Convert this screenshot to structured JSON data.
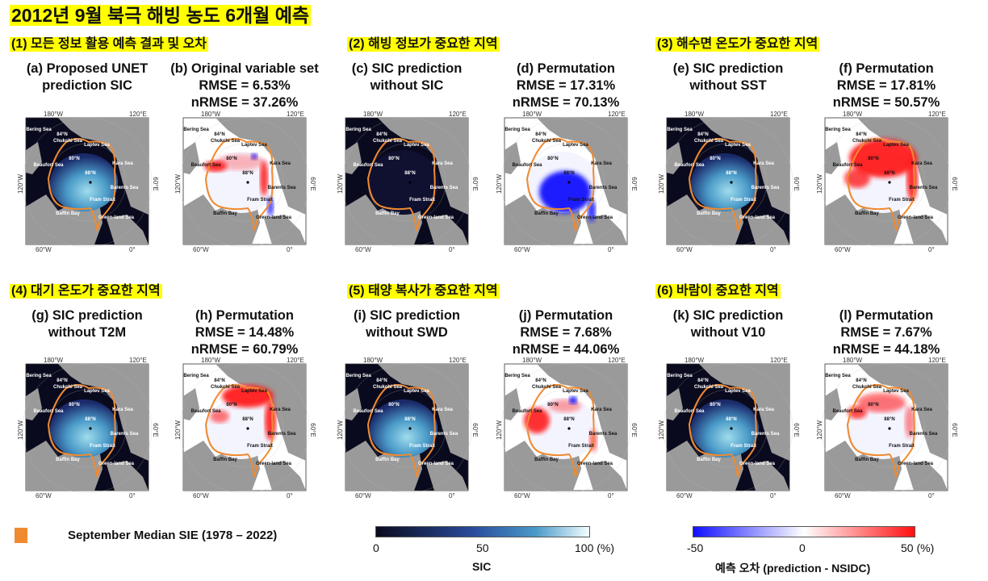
{
  "title": "2012년 9월 북극 해빙 농도 6개월 예측",
  "sections": [
    {
      "label": "(1) 모든 정보 활용 예측 결과 및 오차"
    },
    {
      "label": "(2) 해빙 정보가 중요한 지역"
    },
    {
      "label": "(3) 해수면 온도가 중요한 지역"
    },
    {
      "label": "(4) 대기 온도가 중요한 지역"
    },
    {
      "label": "(5) 태양 복사가 중요한 지역"
    },
    {
      "label": "(6) 바람이 중요한 지역"
    }
  ],
  "panels": [
    {
      "id": "a",
      "type": "sic",
      "lines": [
        "(a) Proposed UNET",
        "prediction SIC"
      ]
    },
    {
      "id": "b",
      "type": "error",
      "lines": [
        "(b) Original variable set",
        "RMSE = 6.53%",
        "nRMSE = 37.26%"
      ]
    },
    {
      "id": "c",
      "type": "sic",
      "lines": [
        "(c) SIC prediction",
        "without SIC"
      ]
    },
    {
      "id": "d",
      "type": "error",
      "lines": [
        "(d) Permutation",
        "RMSE = 17.31%",
        "nRMSE = 70.13%"
      ]
    },
    {
      "id": "e",
      "type": "sic",
      "lines": [
        "(e) SIC prediction",
        "without SST"
      ]
    },
    {
      "id": "f",
      "type": "error",
      "lines": [
        "(f) Permutation",
        "RMSE = 17.81%",
        "nRMSE = 50.57%"
      ]
    },
    {
      "id": "g",
      "type": "sic",
      "lines": [
        "(g) SIC prediction",
        "without T2M"
      ]
    },
    {
      "id": "h",
      "type": "error",
      "lines": [
        "(h) Permutation",
        "RMSE = 14.48%",
        "nRMSE = 60.79%"
      ]
    },
    {
      "id": "i",
      "type": "sic",
      "lines": [
        "(i) SIC prediction",
        "without SWD"
      ]
    },
    {
      "id": "j",
      "type": "error",
      "lines": [
        "(j) Permutation",
        "RMSE = 7.68%",
        "nRMSE = 44.06%"
      ]
    },
    {
      "id": "k",
      "type": "sic",
      "lines": [
        "(k) SIC prediction",
        "without V10"
      ]
    },
    {
      "id": "l",
      "type": "error",
      "lines": [
        "(l) Permutation",
        "RMSE = 7.67%",
        "nRMSE = 44.18%"
      ]
    }
  ],
  "map_labels": {
    "seas": [
      "Bering Sea",
      "Chukchi Sea",
      "Laptev Sea",
      "Beaufort Sea",
      "Kara Sea",
      "Barents Sea",
      "Fram Strait",
      "Baffin Bay",
      "Green-land Sea"
    ],
    "lon": [
      "180°W",
      "120°E",
      "120°W",
      "60°E",
      "60°W",
      "0°"
    ],
    "lat": [
      "84°N",
      "80°N",
      "88°N"
    ]
  },
  "legend": {
    "label": "September Median SIE (1978 – 2022)",
    "color": "#f08a30"
  },
  "sic_colorbar": {
    "ticks": [
      "0",
      "50",
      "100 (%)"
    ],
    "title": "SIC",
    "colors": [
      "#0a0a1e",
      "#2a4a9a",
      "#4a9ac8",
      "#f2ffff"
    ],
    "range": [
      0,
      100
    ]
  },
  "error_colorbar": {
    "ticks": [
      "-50",
      "0",
      "50 (%)"
    ],
    "title": "예측 오차 (prediction - NSIDC)",
    "colors": [
      "#1010ff",
      "#ffffff",
      "#ff1010"
    ],
    "range": [
      -50,
      50
    ]
  },
  "colors": {
    "land": "#9a9a9a",
    "ocean_sic": "#0a0a1e",
    "ocean_error": "#ffffff",
    "highlight": "#ffff00",
    "sie_outline": "#f08a30"
  }
}
